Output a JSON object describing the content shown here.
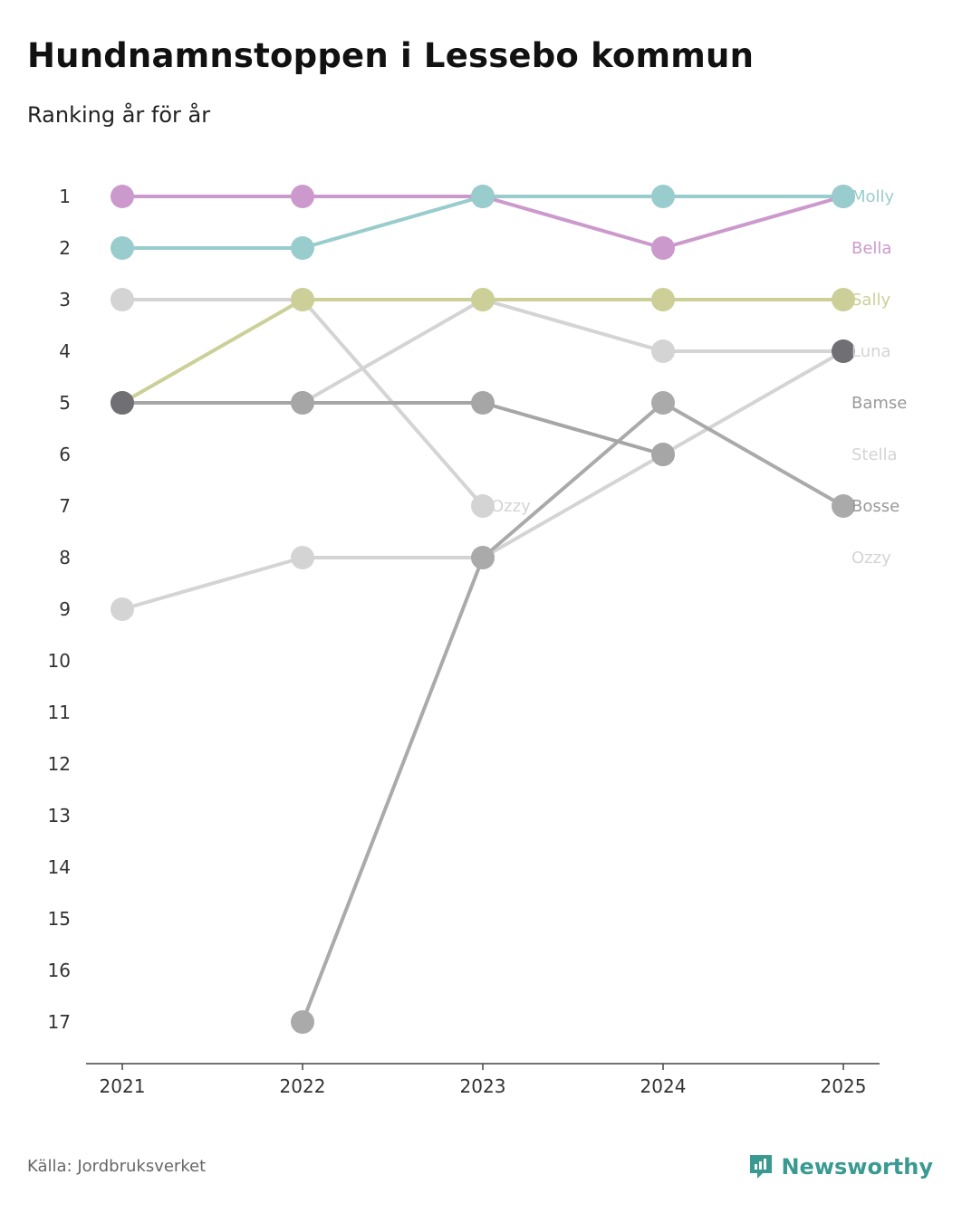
{
  "title": "Hundnamnstoppen i Lessebo kommun",
  "subtitle": "Ranking år för år",
  "source": "Källa: Jordbruksverket",
  "brand": {
    "name": "Newsworthy",
    "icon": "newsworthy-logo-icon",
    "color": "#3a9a92"
  },
  "chart_data": {
    "type": "line",
    "title": "Hundnamnstoppen i Lessebo kommun",
    "subtitle": "Ranking år för år",
    "x": [
      "2021",
      "2022",
      "2023",
      "2024",
      "2025"
    ],
    "y_ticks": [
      "1",
      "2",
      "3",
      "4",
      "5",
      "6",
      "7",
      "8",
      "9",
      "10",
      "11",
      "12",
      "13",
      "14",
      "15",
      "16",
      "17"
    ],
    "ylim": [
      1,
      17
    ],
    "y_inverted": true,
    "series": [
      {
        "name": "Ozzy",
        "values": [
          3,
          3,
          7,
          null,
          null
        ],
        "color": "#d4d4d4"
      },
      {
        "name": "Stella",
        "values": [
          9,
          8,
          8,
          6,
          4
        ],
        "color": "#d4d4d4"
      },
      {
        "name": "Luna",
        "values": [
          null,
          5,
          3,
          4,
          4
        ],
        "color": "#d4d4d4"
      },
      {
        "name": "Bosse",
        "values": [
          null,
          17,
          8,
          5,
          7
        ],
        "color": "#aaaaaa"
      },
      {
        "name": "Bamse",
        "values": [
          5,
          5,
          5,
          6,
          null
        ],
        "color": "#a6a6a6"
      },
      {
        "name": "Sally",
        "values": [
          5,
          3,
          3,
          3,
          3
        ],
        "color": "#cccf97"
      },
      {
        "name": "Bella",
        "values": [
          1,
          1,
          1,
          2,
          1
        ],
        "color": "#cc99cc"
      },
      {
        "name": "Molly",
        "values": [
          2,
          2,
          1,
          1,
          1
        ],
        "color": "#99cccc"
      }
    ],
    "extra_points": [
      {
        "name": "Bamse",
        "x": "2025",
        "y": 4,
        "color": "#6f6f74"
      },
      {
        "name": "Bamse",
        "x": "2021",
        "y": 5,
        "color": "#6f6f74"
      }
    ],
    "end_labels": [
      {
        "text": "Molly",
        "rank": 1,
        "color": "#99cccc"
      },
      {
        "text": "Bella",
        "rank": 2,
        "color": "#cc99cc"
      },
      {
        "text": "Sally",
        "rank": 3,
        "color": "#cccf97"
      },
      {
        "text": "Luna",
        "rank": 4,
        "color": "#d4d4d4"
      },
      {
        "text": "Bamse",
        "rank": 5,
        "color": "#999999"
      },
      {
        "text": "Stella",
        "rank": 6,
        "color": "#d4d4d4"
      },
      {
        "text": "Bosse",
        "rank": 7,
        "color": "#999999"
      },
      {
        "text": "Ozzy",
        "rank": 8,
        "color": "#d4d4d4"
      }
    ],
    "inline_labels": [
      {
        "text": "Ozzy",
        "x": "2023",
        "rank": 7,
        "color": "#d4d4d4"
      }
    ]
  }
}
